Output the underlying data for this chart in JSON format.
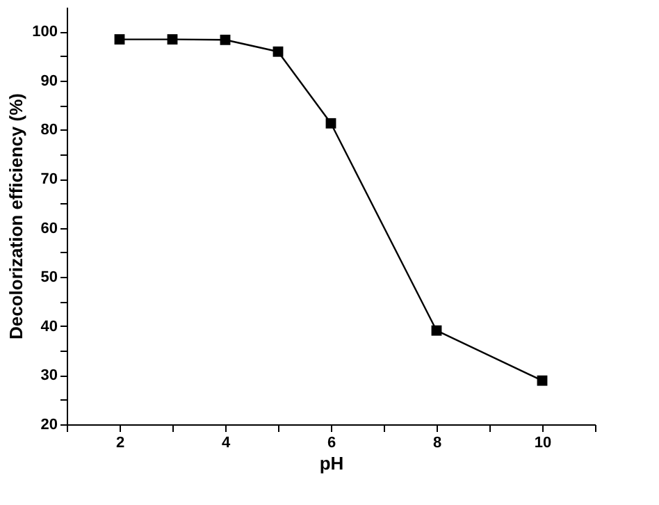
{
  "chart_data": {
    "type": "line",
    "xlabel": "pH",
    "ylabel": "Decolorization efficiency (%)",
    "x": [
      2,
      3,
      4,
      5,
      6,
      8,
      10
    ],
    "series": [
      {
        "color": "#000000",
        "values": [
          98.4,
          98.4,
          98.3,
          95.9,
          81.3,
          39.1,
          28.9
        ]
      }
    ],
    "xlim": [
      1,
      11
    ],
    "xticks": [
      {
        "value": 1,
        "label": null
      },
      2,
      {
        "value": 3,
        "label": null
      },
      4,
      {
        "value": 5,
        "label": null
      },
      6,
      {
        "value": 7,
        "label": null
      },
      8,
      {
        "value": 9,
        "label": null
      },
      10,
      {
        "value": 11,
        "label": null
      }
    ],
    "ylim": [
      20,
      105
    ],
    "yticks": [
      20,
      {
        "value": 25,
        "label": null
      },
      30,
      {
        "value": 35,
        "label": null
      },
      40,
      {
        "value": 45,
        "label": null
      },
      50,
      {
        "value": 55,
        "label": null
      },
      60,
      {
        "value": 65,
        "label": null
      },
      70,
      {
        "value": 75,
        "label": null
      },
      80,
      {
        "value": 85,
        "label": null
      },
      90,
      {
        "value": 95,
        "label": null
      },
      100
    ],
    "marker": "square",
    "line_style": "solid"
  }
}
